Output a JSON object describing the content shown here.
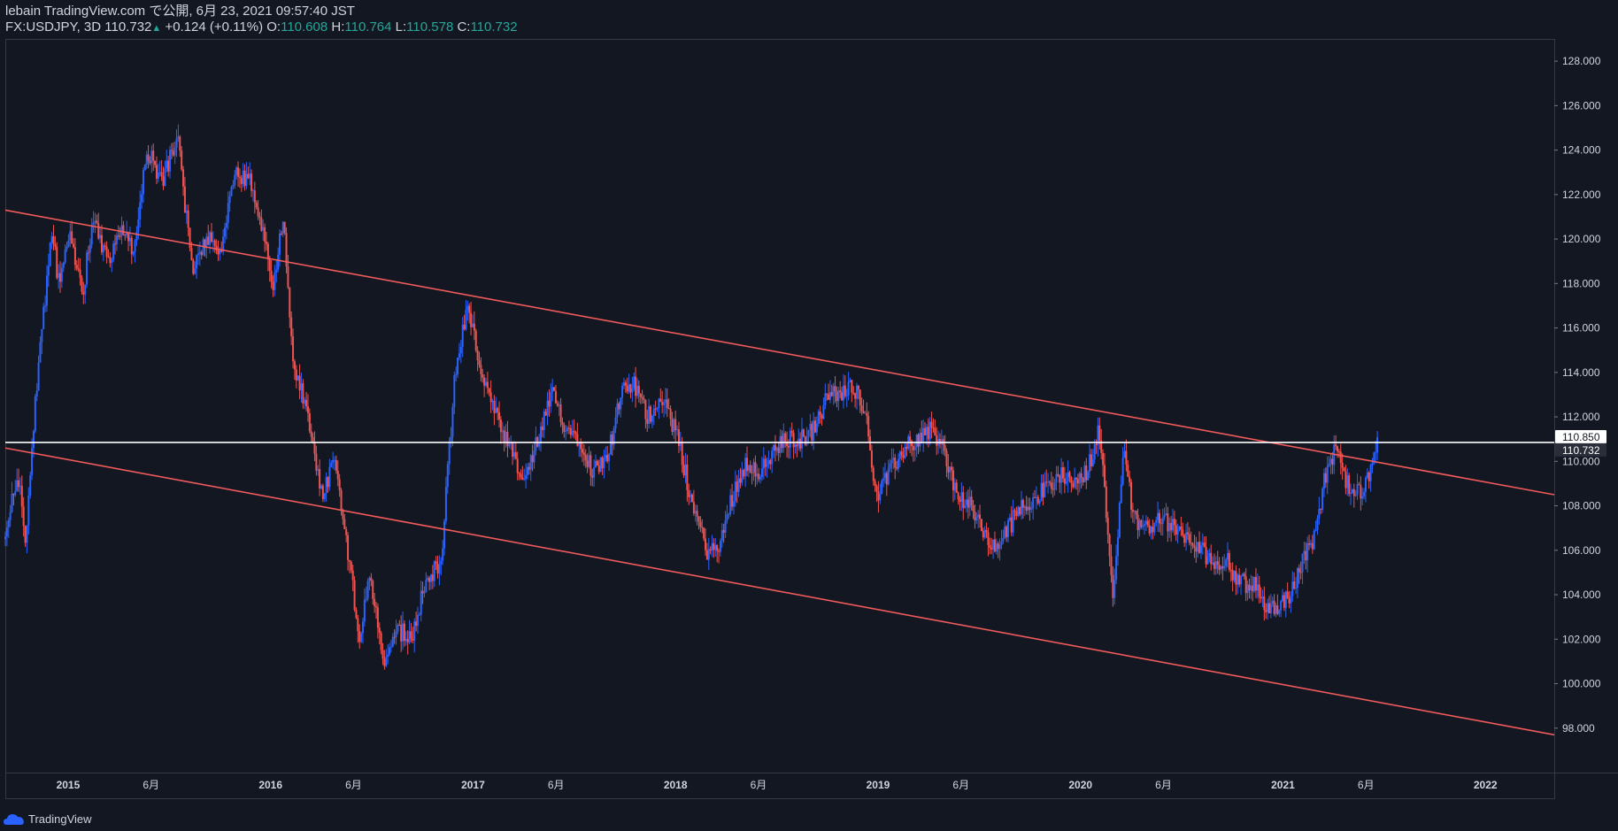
{
  "header": {
    "published": "lebain TradingView.com で公開, 6月 23, 2021 09:57:40 JST",
    "symbol": "FX:USDJPY, 3D",
    "last": "110.732",
    "arrow": "▲",
    "change": "+0.124 (+0.11%)",
    "o_label": "O:",
    "o_value": "110.608",
    "h_label": "H:",
    "h_value": "110.764",
    "l_label": "L:",
    "l_value": "110.578",
    "c_label": "C:",
    "c_value": "110.732"
  },
  "footer": {
    "brand": "TradingView"
  },
  "colors": {
    "background": "#131722",
    "up": "#2962ff",
    "down": "#ef5350",
    "channel": "#f05a5a",
    "hline": "#ffffff",
    "text": "#d1d4dc",
    "teal": "#26a69a"
  },
  "chart_data": {
    "type": "candlestick",
    "symbol": "FX:USDJPY",
    "interval": "3D",
    "ylim": [
      96.0,
      129.0
    ],
    "y_ticks": [
      98,
      100,
      102,
      104,
      106,
      108,
      110,
      112,
      114,
      116,
      118,
      120,
      122,
      124,
      126,
      128
    ],
    "y_tick_labels": [
      "98.000",
      "100.000",
      "102.000",
      "104.000",
      "106.000",
      "108.000",
      "110.000",
      "112.000",
      "114.000",
      "116.000",
      "118.000",
      "120.000",
      "122.000",
      "124.000",
      "126.000",
      "128.000"
    ],
    "xlim": [
      2014.69,
      2022.34
    ],
    "x_ticks": [
      {
        "t": 2015.0,
        "label": "2015",
        "bold": true
      },
      {
        "t": 2015.41,
        "label": "6月",
        "bold": false
      },
      {
        "t": 2016.0,
        "label": "2016",
        "bold": true
      },
      {
        "t": 2016.41,
        "label": "6月",
        "bold": false
      },
      {
        "t": 2017.0,
        "label": "2017",
        "bold": true
      },
      {
        "t": 2017.41,
        "label": "6月",
        "bold": false
      },
      {
        "t": 2018.0,
        "label": "2018",
        "bold": true
      },
      {
        "t": 2018.41,
        "label": "6月",
        "bold": false
      },
      {
        "t": 2019.0,
        "label": "2019",
        "bold": true
      },
      {
        "t": 2019.41,
        "label": "6月",
        "bold": false
      },
      {
        "t": 2020.0,
        "label": "2020",
        "bold": true
      },
      {
        "t": 2020.41,
        "label": "6月",
        "bold": false
      },
      {
        "t": 2021.0,
        "label": "2021",
        "bold": true
      },
      {
        "t": 2021.41,
        "label": "6月",
        "bold": false
      },
      {
        "t": 2022.0,
        "label": "2022",
        "bold": true
      }
    ],
    "price_path": [
      [
        2014.69,
        106.5
      ],
      [
        2014.76,
        109.5
      ],
      [
        2014.8,
        106.5
      ],
      [
        2014.84,
        112.0
      ],
      [
        2014.88,
        116.0
      ],
      [
        2014.93,
        120.5
      ],
      [
        2014.96,
        118.0
      ],
      [
        2015.02,
        120.0
      ],
      [
        2015.08,
        117.5
      ],
      [
        2015.13,
        121.0
      ],
      [
        2015.2,
        119.0
      ],
      [
        2015.27,
        120.5
      ],
      [
        2015.33,
        119.5
      ],
      [
        2015.4,
        124.0
      ],
      [
        2015.47,
        122.5
      ],
      [
        2015.55,
        124.8
      ],
      [
        2015.62,
        118.5
      ],
      [
        2015.69,
        120.0
      ],
      [
        2015.76,
        119.5
      ],
      [
        2015.83,
        123.0
      ],
      [
        2015.92,
        122.5
      ],
      [
        2015.98,
        120.0
      ],
      [
        2016.02,
        117.5
      ],
      [
        2016.07,
        121.0
      ],
      [
        2016.12,
        114.5
      ],
      [
        2016.19,
        112.0
      ],
      [
        2016.26,
        108.5
      ],
      [
        2016.33,
        110.0
      ],
      [
        2016.38,
        106.5
      ],
      [
        2016.45,
        102.0
      ],
      [
        2016.5,
        105.0
      ],
      [
        2016.57,
        100.5
      ],
      [
        2016.63,
        102.5
      ],
      [
        2016.7,
        102.0
      ],
      [
        2016.77,
        104.5
      ],
      [
        2016.85,
        105.5
      ],
      [
        2016.92,
        114.0
      ],
      [
        2016.98,
        117.0
      ],
      [
        2017.05,
        114.0
      ],
      [
        2017.12,
        112.0
      ],
      [
        2017.19,
        110.5
      ],
      [
        2017.26,
        109.0
      ],
      [
        2017.33,
        111.0
      ],
      [
        2017.4,
        113.0
      ],
      [
        2017.47,
        111.5
      ],
      [
        2017.54,
        111.0
      ],
      [
        2017.6,
        109.5
      ],
      [
        2017.68,
        110.5
      ],
      [
        2017.74,
        113.0
      ],
      [
        2017.8,
        113.5
      ],
      [
        2017.87,
        112.0
      ],
      [
        2017.94,
        113.0
      ],
      [
        2018.02,
        111.0
      ],
      [
        2018.08,
        108.5
      ],
      [
        2018.16,
        106.0
      ],
      [
        2018.22,
        106.0
      ],
      [
        2018.29,
        108.5
      ],
      [
        2018.36,
        110.0
      ],
      [
        2018.43,
        109.5
      ],
      [
        2018.5,
        110.5
      ],
      [
        2018.56,
        111.0
      ],
      [
        2018.63,
        111.0
      ],
      [
        2018.7,
        111.5
      ],
      [
        2018.76,
        113.0
      ],
      [
        2018.83,
        113.0
      ],
      [
        2018.88,
        113.5
      ],
      [
        2018.94,
        112.5
      ],
      [
        2019.0,
        108.5
      ],
      [
        2019.07,
        109.5
      ],
      [
        2019.13,
        110.5
      ],
      [
        2019.2,
        111.0
      ],
      [
        2019.27,
        111.5
      ],
      [
        2019.33,
        110.5
      ],
      [
        2019.4,
        108.5
      ],
      [
        2019.46,
        108.0
      ],
      [
        2019.52,
        107.0
      ],
      [
        2019.58,
        106.0
      ],
      [
        2019.65,
        107.0
      ],
      [
        2019.72,
        108.0
      ],
      [
        2019.8,
        108.5
      ],
      [
        2019.87,
        109.0
      ],
      [
        2019.94,
        109.5
      ],
      [
        2019.98,
        109.0
      ],
      [
        2020.04,
        109.5
      ],
      [
        2020.1,
        111.5
      ],
      [
        2020.17,
        104.0
      ],
      [
        2020.22,
        110.5
      ],
      [
        2020.27,
        107.5
      ],
      [
        2020.33,
        107.0
      ],
      [
        2020.4,
        107.5
      ],
      [
        2020.47,
        107.0
      ],
      [
        2020.53,
        106.5
      ],
      [
        2020.6,
        106.0
      ],
      [
        2020.67,
        105.5
      ],
      [
        2020.73,
        105.5
      ],
      [
        2020.8,
        104.5
      ],
      [
        2020.86,
        104.5
      ],
      [
        2020.92,
        103.5
      ],
      [
        2020.98,
        103.5
      ],
      [
        2021.05,
        104.0
      ],
      [
        2021.1,
        105.5
      ],
      [
        2021.16,
        106.5
      ],
      [
        2021.22,
        109.5
      ],
      [
        2021.27,
        110.5
      ],
      [
        2021.32,
        109.0
      ],
      [
        2021.37,
        108.5
      ],
      [
        2021.42,
        109.0
      ],
      [
        2021.46,
        110.0
      ],
      [
        2021.47,
        110.7
      ]
    ],
    "channel_upper": [
      [
        2014.69,
        121.3
      ],
      [
        2022.34,
        108.5
      ]
    ],
    "channel_lower": [
      [
        2014.69,
        110.6
      ],
      [
        2022.34,
        97.7
      ]
    ],
    "horizontal_line": 110.85,
    "price_labels": [
      {
        "value": 110.85,
        "text": "110.850"
      },
      {
        "value": 110.732,
        "text": "110.732"
      }
    ]
  }
}
